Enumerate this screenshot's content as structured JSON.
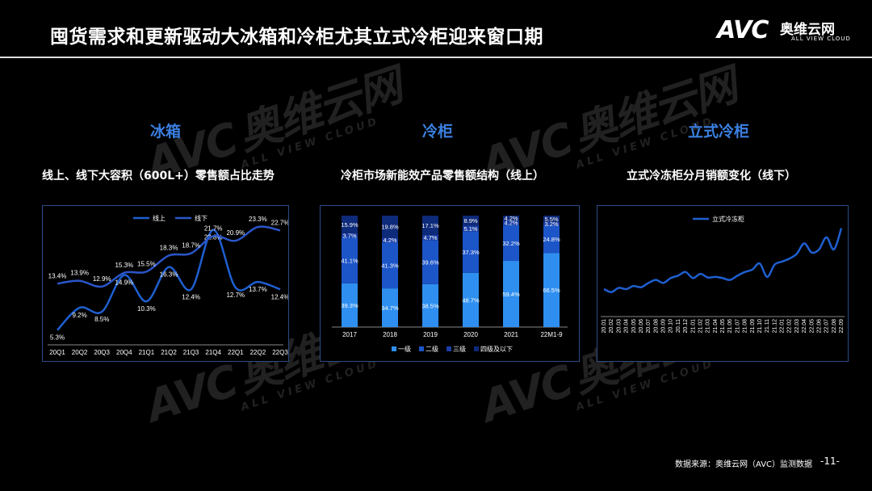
{
  "title": "囤货需求和更新驱动大冰箱和冷柜尤其立式冷柜迎来窗口期",
  "logo": {
    "mark": "AVC",
    "cn": "奥维云网",
    "en": "ALL VIEW CLOUD"
  },
  "watermark": {
    "mark": "AVC",
    "cn": "奥维云网",
    "en": "ALL VIEW CLOUD"
  },
  "sections": {
    "fridge": "冰箱",
    "freezer": "冷柜",
    "upright": "立式冷柜"
  },
  "footer": {
    "source": "数据来源：奥维云网（AVC）监测数据",
    "page": "-11-"
  },
  "colors": {
    "line1": "#1f5fd0",
    "line2": "#2a56c8",
    "c1": "#2e8ff0",
    "c2": "#1c55c8",
    "c3": "#1a3ea6",
    "c4": "#0e2a7a",
    "accent": "#3b7fe0",
    "border": "#2b4c86"
  },
  "chart_data": [
    {
      "type": "line",
      "title": "线上、线下大容积（600L+）零售额占比走势",
      "categories": [
        "20Q1",
        "20Q2",
        "20Q3",
        "20Q4",
        "21Q1",
        "21Q2",
        "21Q3",
        "21Q4",
        "22Q1",
        "22Q2",
        "22Q3"
      ],
      "series": [
        {
          "name": "线上",
          "values": [
            5.3,
            9.2,
            8.5,
            14.9,
            10.3,
            16.3,
            12.4,
            22.8,
            12.7,
            13.7,
            12.4
          ]
        },
        {
          "name": "线下",
          "values": [
            13.4,
            13.9,
            12.9,
            15.3,
            15.5,
            18.3,
            18.7,
            21.7,
            20.9,
            23.3,
            22.7
          ]
        }
      ],
      "labels": [
        [
          "5.3%",
          "9.2%",
          "8.5%",
          "14.9%",
          "10.3%",
          "16.3%",
          "12.4%",
          "22.8%",
          "12.7%",
          "13.7%",
          "12.4%"
        ],
        [
          "13.4%",
          "13.9%",
          "12.9%",
          "15.3%",
          "15.5%",
          "18.3%",
          "18.7%",
          "21.7%",
          "20.9%",
          "23.3%",
          "22.7%"
        ]
      ],
      "ylim": [
        3,
        25
      ],
      "legend": "top"
    },
    {
      "type": "bar",
      "stacked": true,
      "title": "冷柜市场新能效产品零售额结构（线上）",
      "categories": [
        "2017",
        "2018",
        "2019",
        "2020",
        "2021",
        "22M1-9"
      ],
      "series": [
        {
          "name": "一级",
          "values": [
            39.3,
            34.7,
            38.5,
            48.7,
            59.4,
            66.5
          ]
        },
        {
          "name": "二级",
          "values": [
            41.1,
            41.3,
            39.6,
            37.3,
            32.2,
            24.8
          ]
        },
        {
          "name": "三级",
          "values": [
            3.7,
            4.2,
            4.7,
            5.1,
            4.2,
            3.2
          ]
        },
        {
          "name": "四级及以下",
          "values": [
            15.9,
            19.8,
            17.1,
            8.9,
            4.2,
            5.5
          ]
        }
      ],
      "labels": [
        [
          "39.3%",
          "34.7%",
          "38.5%",
          "48.7%",
          "59.4%",
          "66.5%"
        ],
        [
          "41.1%",
          "41.3%",
          "39.6%",
          "37.3%",
          "32.2%",
          "24.8%"
        ],
        [
          "3.7%",
          "4.2%",
          "4.7%",
          "5.1%",
          "4.2%",
          "3.2%"
        ],
        [
          "15.9%",
          "19.8%",
          "17.1%",
          "8.9%",
          "4.2%",
          "5.5%"
        ]
      ],
      "ylim": [
        0,
        100
      ],
      "legend": "bottom"
    },
    {
      "type": "line",
      "title": "立式冷冻柜分月销额变化（线下）",
      "categories": [
        "20.01",
        "20.02",
        "20.03",
        "20.04",
        "20.05",
        "20.06",
        "20.07",
        "20.08",
        "20.09",
        "20.10",
        "20.11",
        "20.12",
        "21.01",
        "21.02",
        "21.03",
        "21.04",
        "21.05",
        "21.06",
        "21.07",
        "21.08",
        "21.09",
        "21.10",
        "21.11",
        "21.12",
        "22.01",
        "22.02",
        "22.03",
        "22.04",
        "22.05",
        "22.06",
        "22.07",
        "22.08",
        "22.09"
      ],
      "series": [
        {
          "name": "立式冷冻柜",
          "values": [
            2.0,
            1.5,
            2.2,
            2.0,
            2.5,
            2.3,
            3.0,
            3.5,
            3.0,
            3.8,
            4.2,
            4.8,
            3.8,
            4.5,
            3.9,
            4.0,
            3.8,
            3.5,
            4.2,
            4.8,
            5.2,
            6.2,
            4.0,
            6.0,
            6.5,
            7.0,
            7.8,
            9.5,
            8.0,
            8.5,
            10.5,
            8.5,
            12.0
          ]
        }
      ],
      "legend": "top-left"
    }
  ]
}
